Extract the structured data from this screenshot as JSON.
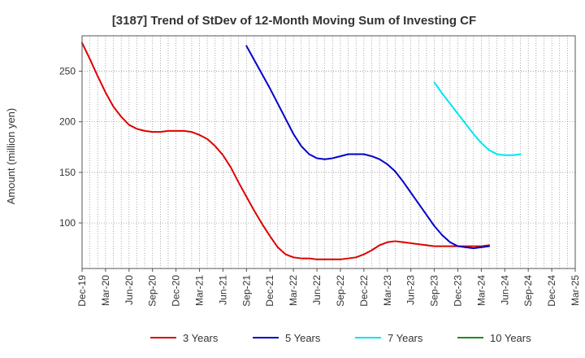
{
  "chart_data": {
    "type": "line",
    "title": "[3187]  Trend of StDev of 12-Month Moving Sum of Investing CF",
    "ylabel": "Amount (million yen)",
    "xlabel": "",
    "x_range": [
      "Dec-19",
      "Mar-25"
    ],
    "ylim": [
      55,
      285
    ],
    "yticks": [
      100,
      150,
      200,
      250
    ],
    "xtick_labels": [
      "Dec-19",
      "Mar-20",
      "Jun-20",
      "Sep-20",
      "Dec-20",
      "Mar-21",
      "Jun-21",
      "Sep-21",
      "Dec-21",
      "Mar-22",
      "Jun-22",
      "Sep-22",
      "Dec-22",
      "Mar-23",
      "Jun-23",
      "Sep-23",
      "Dec-23",
      "Mar-24",
      "Jun-24",
      "Sep-24",
      "Dec-24",
      "Mar-25"
    ],
    "grid": true,
    "legend_position": "bottom",
    "series": [
      {
        "name": "3 Years",
        "color": "#dd0000",
        "start": "Dec-19",
        "values": [
          278,
          262,
          245,
          229,
          215,
          205,
          197,
          193,
          191,
          190,
          190,
          191,
          191,
          191,
          190,
          187,
          183,
          176,
          167,
          155,
          140,
          126,
          112,
          99,
          87,
          76,
          69,
          66,
          65,
          65,
          64,
          64,
          64,
          64,
          65,
          66,
          69,
          73,
          78,
          81,
          82,
          81,
          80,
          79,
          78,
          77,
          77,
          77,
          77,
          77,
          77,
          77,
          78
        ]
      },
      {
        "name": "5 Years",
        "color": "#0000cc",
        "start": "Sep-21",
        "values": [
          275,
          261,
          247,
          233,
          218,
          203,
          188,
          176,
          168,
          164,
          163,
          164,
          166,
          168,
          168,
          168,
          166,
          163,
          158,
          151,
          141,
          130,
          119,
          108,
          97,
          88,
          81,
          77,
          76,
          75,
          76,
          77
        ]
      },
      {
        "name": "7 Years",
        "color": "#00e5ee",
        "start": "Sep-23",
        "values": [
          239,
          228,
          218,
          208,
          198,
          188,
          179,
          172,
          168,
          167,
          167,
          168
        ]
      },
      {
        "name": "10 Years",
        "color": "#228b22",
        "start": "Sep-24",
        "values": []
      }
    ]
  }
}
